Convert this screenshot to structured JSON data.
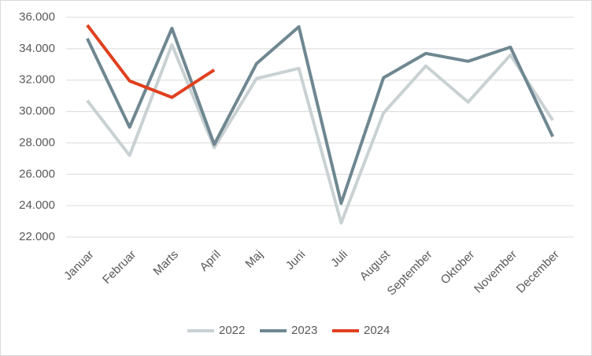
{
  "chart_data": {
    "type": "line",
    "categories": [
      "Januar",
      "Februar",
      "Marts",
      "April",
      "Maj",
      "Juni",
      "Juli",
      "August",
      "September",
      "Oktober",
      "November",
      "December"
    ],
    "series": [
      {
        "name": "2022",
        "color": "#c9d1d3",
        "values": [
          30700,
          27200,
          34250,
          27700,
          32100,
          32750,
          22900,
          29900,
          32900,
          30600,
          33600,
          29450
        ]
      },
      {
        "name": "2023",
        "color": "#6e8791",
        "values": [
          34650,
          29000,
          35300,
          27900,
          33050,
          35400,
          24150,
          32150,
          33700,
          33200,
          34100,
          28400
        ]
      },
      {
        "name": "2024",
        "color": "#e0401f",
        "values": [
          35500,
          31950,
          30900,
          32650,
          null,
          null,
          null,
          null,
          null,
          null,
          null,
          null
        ]
      }
    ],
    "ylim": [
      22000,
      36000
    ],
    "yticks": [
      {
        "value": 22000,
        "label": "22.000"
      },
      {
        "value": 24000,
        "label": "24.000"
      },
      {
        "value": 26000,
        "label": "26.000"
      },
      {
        "value": 28000,
        "label": "28.000"
      },
      {
        "value": 30000,
        "label": "30.000"
      },
      {
        "value": 32000,
        "label": "32.000"
      },
      {
        "value": 34000,
        "label": "34.000"
      },
      {
        "value": 36000,
        "label": "36.000"
      }
    ],
    "grid": true,
    "legend": "bottom"
  }
}
